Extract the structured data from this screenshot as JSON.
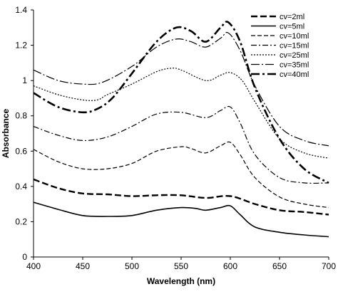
{
  "chart_data": {
    "type": "line",
    "title": "",
    "xlabel": "Wavelength (nm)",
    "ylabel": "Absorbance",
    "xlim": [
      400,
      700
    ],
    "ylim": [
      0,
      1.4
    ],
    "x_ticks": [
      "400",
      "450",
      "500",
      "550",
      "600",
      "650",
      "700"
    ],
    "y_ticks": [
      "0",
      "0.2",
      "0.4",
      "0.6",
      "0.8",
      "1",
      "1.2",
      "1.4"
    ],
    "grid": false,
    "legend_position": "top-right",
    "series": [
      {
        "name": "cv=2ml",
        "dash": "9,4",
        "width": 2.4,
        "points": [
          [
            400,
            0.44
          ],
          [
            425,
            0.39
          ],
          [
            450,
            0.36
          ],
          [
            475,
            0.355
          ],
          [
            500,
            0.345
          ],
          [
            525,
            0.35
          ],
          [
            550,
            0.35
          ],
          [
            575,
            0.335
          ],
          [
            600,
            0.345
          ],
          [
            625,
            0.3
          ],
          [
            650,
            0.265
          ],
          [
            675,
            0.255
          ],
          [
            700,
            0.24
          ]
        ]
      },
      {
        "name": "cv=5ml",
        "dash": "",
        "width": 1.6,
        "points": [
          [
            400,
            0.31
          ],
          [
            425,
            0.27
          ],
          [
            450,
            0.235
          ],
          [
            475,
            0.23
          ],
          [
            500,
            0.235
          ],
          [
            525,
            0.265
          ],
          [
            550,
            0.28
          ],
          [
            565,
            0.275
          ],
          [
            575,
            0.265
          ],
          [
            590,
            0.28
          ],
          [
            600,
            0.29
          ],
          [
            610,
            0.24
          ],
          [
            625,
            0.17
          ],
          [
            650,
            0.14
          ],
          [
            675,
            0.125
          ],
          [
            700,
            0.115
          ]
        ]
      },
      {
        "name": "cv=10ml",
        "dash": "6,3",
        "width": 1.2,
        "points": [
          [
            400,
            0.61
          ],
          [
            425,
            0.54
          ],
          [
            450,
            0.5
          ],
          [
            475,
            0.5
          ],
          [
            500,
            0.53
          ],
          [
            525,
            0.6
          ],
          [
            550,
            0.625
          ],
          [
            560,
            0.615
          ],
          [
            575,
            0.59
          ],
          [
            590,
            0.63
          ],
          [
            600,
            0.65
          ],
          [
            610,
            0.58
          ],
          [
            625,
            0.45
          ],
          [
            650,
            0.34
          ],
          [
            675,
            0.3
          ],
          [
            700,
            0.28
          ]
        ]
      },
      {
        "name": "cv=15ml",
        "dash": "8,3,2,3",
        "width": 1.2,
        "points": [
          [
            400,
            0.74
          ],
          [
            425,
            0.69
          ],
          [
            450,
            0.66
          ],
          [
            475,
            0.68
          ],
          [
            500,
            0.74
          ],
          [
            525,
            0.81
          ],
          [
            550,
            0.82
          ],
          [
            575,
            0.79
          ],
          [
            590,
            0.83
          ],
          [
            600,
            0.85
          ],
          [
            610,
            0.76
          ],
          [
            625,
            0.58
          ],
          [
            650,
            0.45
          ],
          [
            675,
            0.42
          ],
          [
            700,
            0.42
          ]
        ]
      },
      {
        "name": "cv=25ml",
        "dash": "2,2",
        "width": 1.2,
        "points": [
          [
            400,
            0.97
          ],
          [
            425,
            0.92
          ],
          [
            450,
            0.89
          ],
          [
            465,
            0.89
          ],
          [
            475,
            0.92
          ],
          [
            500,
            0.98
          ],
          [
            525,
            1.05
          ],
          [
            540,
            1.07
          ],
          [
            550,
            1.06
          ],
          [
            575,
            1.0
          ],
          [
            590,
            1.03
          ],
          [
            600,
            1.045
          ],
          [
            612,
            1.0
          ],
          [
            625,
            0.88
          ],
          [
            650,
            0.67
          ],
          [
            675,
            0.59
          ],
          [
            700,
            0.56
          ]
        ]
      },
      {
        "name": "cv=35ml",
        "dash": "12,3,2,3",
        "width": 1.2,
        "points": [
          [
            400,
            1.06
          ],
          [
            425,
            1.0
          ],
          [
            450,
            0.98
          ],
          [
            470,
            0.99
          ],
          [
            500,
            1.08
          ],
          [
            525,
            1.19
          ],
          [
            545,
            1.235
          ],
          [
            560,
            1.22
          ],
          [
            575,
            1.19
          ],
          [
            590,
            1.24
          ],
          [
            598,
            1.27
          ],
          [
            610,
            1.17
          ],
          [
            625,
            0.97
          ],
          [
            650,
            0.74
          ],
          [
            675,
            0.66
          ],
          [
            700,
            0.63
          ]
        ]
      },
      {
        "name": "cv=40ml",
        "dash": "12,4,3,4",
        "width": 2.6,
        "points": [
          [
            400,
            0.93
          ],
          [
            425,
            0.85
          ],
          [
            450,
            0.82
          ],
          [
            465,
            0.84
          ],
          [
            480,
            0.9
          ],
          [
            500,
            1.04
          ],
          [
            525,
            1.22
          ],
          [
            545,
            1.3
          ],
          [
            560,
            1.28
          ],
          [
            575,
            1.22
          ],
          [
            590,
            1.3
          ],
          [
            598,
            1.33
          ],
          [
            610,
            1.22
          ],
          [
            625,
            0.96
          ],
          [
            650,
            0.67
          ],
          [
            675,
            0.5
          ],
          [
            700,
            0.42
          ]
        ]
      }
    ]
  }
}
